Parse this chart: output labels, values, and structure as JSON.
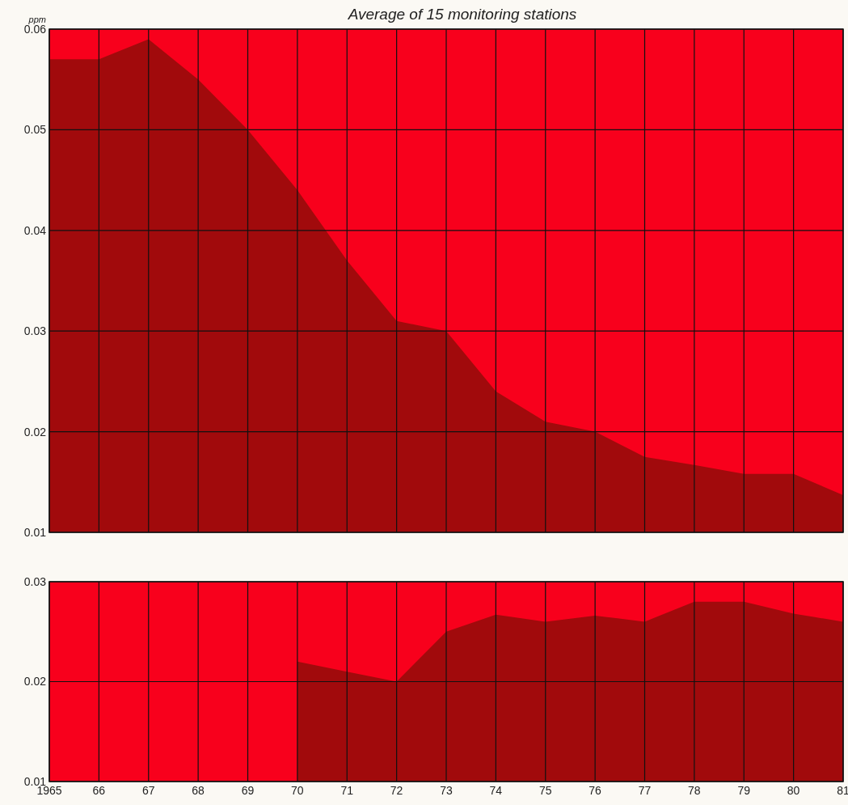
{
  "chart_data": [
    {
      "type": "area",
      "title": "Average of 15 monitoring stations",
      "ylabel": "ppm",
      "x": [
        1965,
        1966,
        1967,
        1968,
        1969,
        1970,
        1971,
        1972,
        1973,
        1974,
        1975,
        1976,
        1977,
        1978,
        1979,
        1980,
        1981
      ],
      "series": [
        {
          "color": "#a10a0c",
          "values": [
            0.057,
            0.057,
            0.059,
            0.055,
            0.05,
            0.044,
            0.037,
            0.031,
            0.03,
            0.024,
            0.021,
            0.02,
            0.0175,
            0.0167,
            0.0158,
            0.0158,
            0.0137
          ]
        }
      ],
      "xlim": [
        1965,
        1981
      ],
      "xticks": [
        1965,
        1966,
        1967,
        1968,
        1969,
        1970,
        1971,
        1972,
        1973,
        1974,
        1975,
        1976,
        1977,
        1978,
        1979,
        1980,
        1981
      ],
      "ylim": [
        0.01,
        0.06
      ],
      "yticks": [
        0.01,
        0.02,
        0.03,
        0.04,
        0.05,
        0.06
      ],
      "grid": true,
      "tick_labels": "y",
      "bands": [
        {
          "axis": "y",
          "from": 0.01,
          "to": 0.06,
          "color": "#f8001c"
        }
      ]
    },
    {
      "type": "area",
      "series": [
        {
          "color": "#a10a0c",
          "x": [
            1970,
            1971,
            1972,
            1973,
            1974,
            1975,
            1976,
            1977,
            1978,
            1979,
            1980,
            1981
          ],
          "values": [
            0.022,
            0.021,
            0.02,
            0.025,
            0.0267,
            0.026,
            0.0266,
            0.026,
            0.028,
            0.028,
            0.0268,
            0.026
          ]
        }
      ],
      "xlim": [
        1965,
        1981
      ],
      "xticks": [
        1965,
        {
          "value": 1966,
          "label": "66"
        },
        {
          "value": 1967,
          "label": "67"
        },
        {
          "value": 1968,
          "label": "68"
        },
        {
          "value": 1969,
          "label": "69"
        },
        {
          "value": 1970,
          "label": "70"
        },
        {
          "value": 1971,
          "label": "71"
        },
        {
          "value": 1972,
          "label": "72"
        },
        {
          "value": 1973,
          "label": "73"
        },
        {
          "value": 1974,
          "label": "74"
        },
        {
          "value": 1975,
          "label": "75"
        },
        {
          "value": 1976,
          "label": "76"
        },
        {
          "value": 1977,
          "label": "77"
        },
        {
          "value": 1978,
          "label": "78"
        },
        {
          "value": 1979,
          "label": "79"
        },
        {
          "value": 1980,
          "label": "80"
        },
        {
          "value": 1981,
          "label": "81"
        }
      ],
      "ylim": [
        0.01,
        0.03
      ],
      "yticks": [
        0.01,
        0.02,
        0.03
      ],
      "grid": true,
      "bands": [
        {
          "axis": "y",
          "from": 0.01,
          "to": 0.03,
          "color": "#f8001c"
        }
      ]
    }
  ]
}
